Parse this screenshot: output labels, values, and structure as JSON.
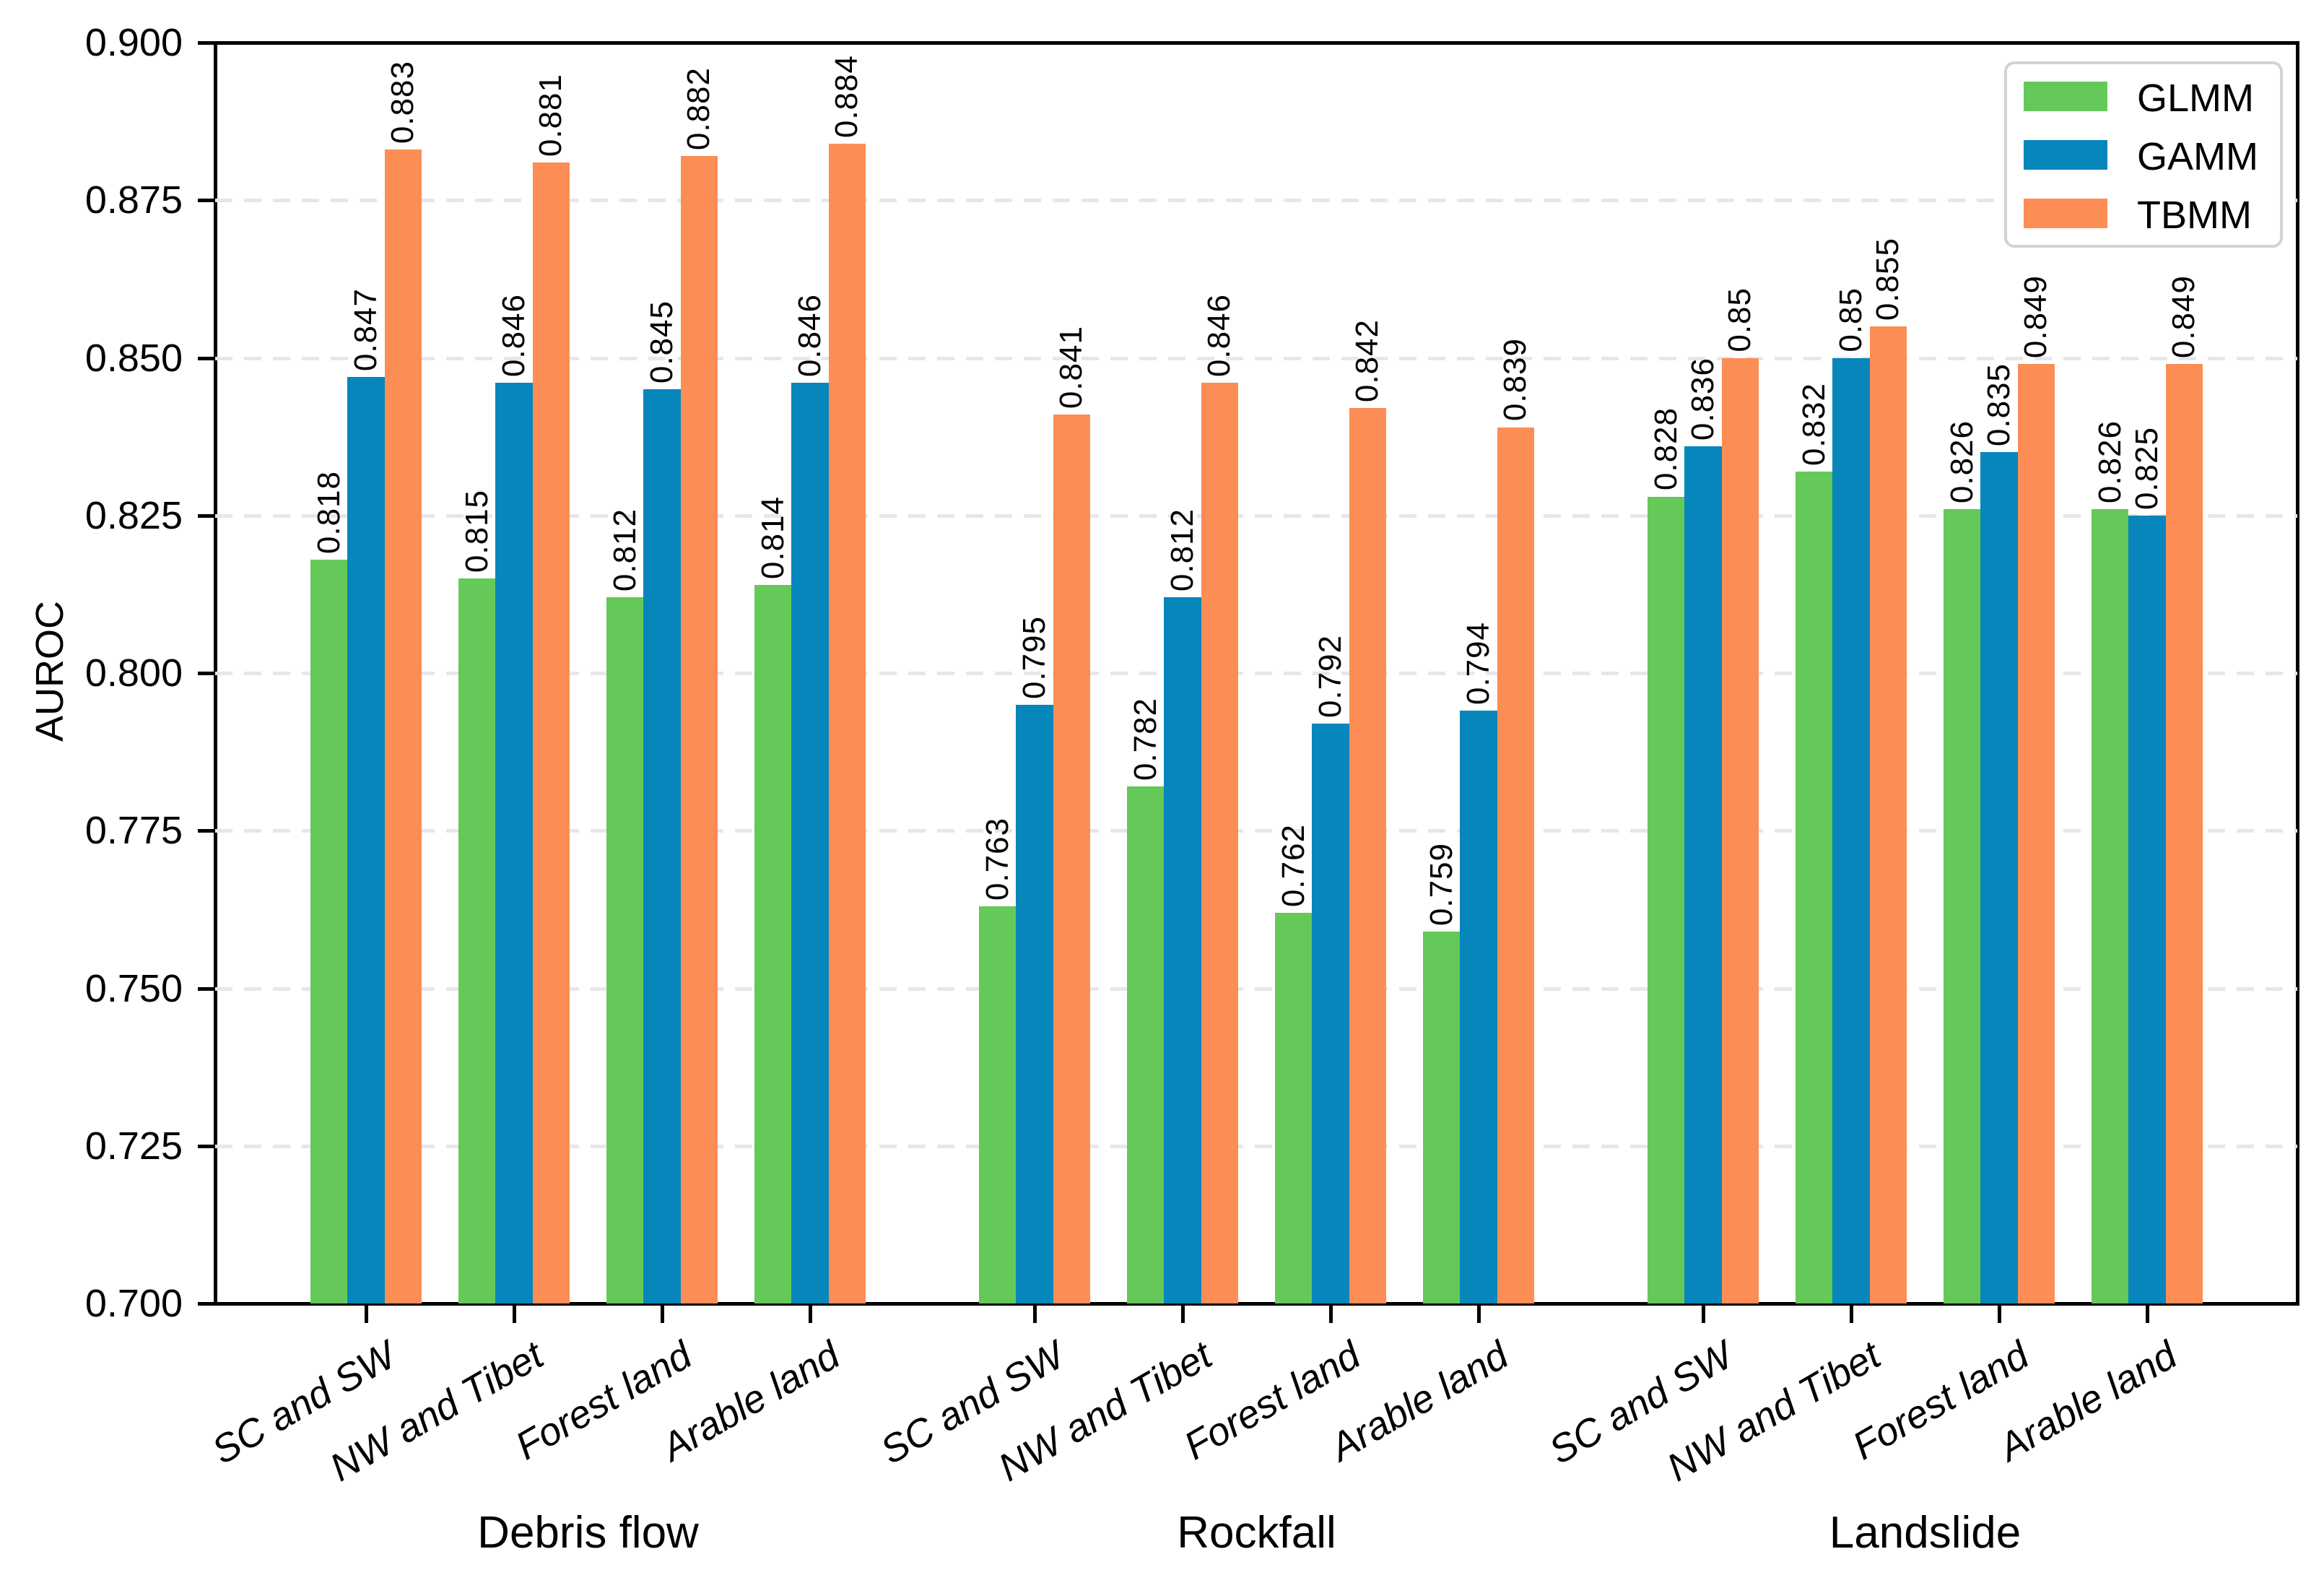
{
  "chart_data": {
    "type": "bar",
    "title": "",
    "ylabel": "AUROC",
    "ylim": [
      0.7,
      0.9
    ],
    "yticks": [
      "0.700",
      "0.725",
      "0.750",
      "0.775",
      "0.800",
      "0.825",
      "0.850",
      "0.875",
      "0.900"
    ],
    "grid": "horizontal-dashed",
    "legend_position": "upper right",
    "groups": [
      "Debris flow",
      "Rockfall",
      "Landslide"
    ],
    "categories": [
      "SC and SW",
      "NW and Tibet",
      "Forest land",
      "Arable land"
    ],
    "series": [
      {
        "name": "GLMM",
        "color": "#65c95a",
        "values": [
          [
            "0.818",
            "0.815",
            "0.812",
            "0.814"
          ],
          [
            "0.763",
            "0.782",
            "0.762",
            "0.759"
          ],
          [
            "0.828",
            "0.832",
            "0.826",
            "0.826"
          ]
        ]
      },
      {
        "name": "GAMM",
        "color": "#0786bb",
        "values": [
          [
            "0.847",
            "0.846",
            "0.845",
            "0.846"
          ],
          [
            "0.795",
            "0.812",
            "0.792",
            "0.794"
          ],
          [
            "0.836",
            "0.85",
            "0.835",
            "0.825"
          ]
        ]
      },
      {
        "name": "TBMM",
        "color": "#fc8d55",
        "values": [
          [
            "0.883",
            "0.881",
            "0.882",
            "0.884"
          ],
          [
            "0.841",
            "0.846",
            "0.842",
            "0.839"
          ],
          [
            "0.85",
            "0.855",
            "0.849",
            "0.849"
          ]
        ]
      }
    ],
    "colors": {
      "spine": "#000000",
      "gridline": "#e7e7e7",
      "text": "#000000",
      "legend_border": "#d2d2d2",
      "background": "#ffffff"
    }
  }
}
